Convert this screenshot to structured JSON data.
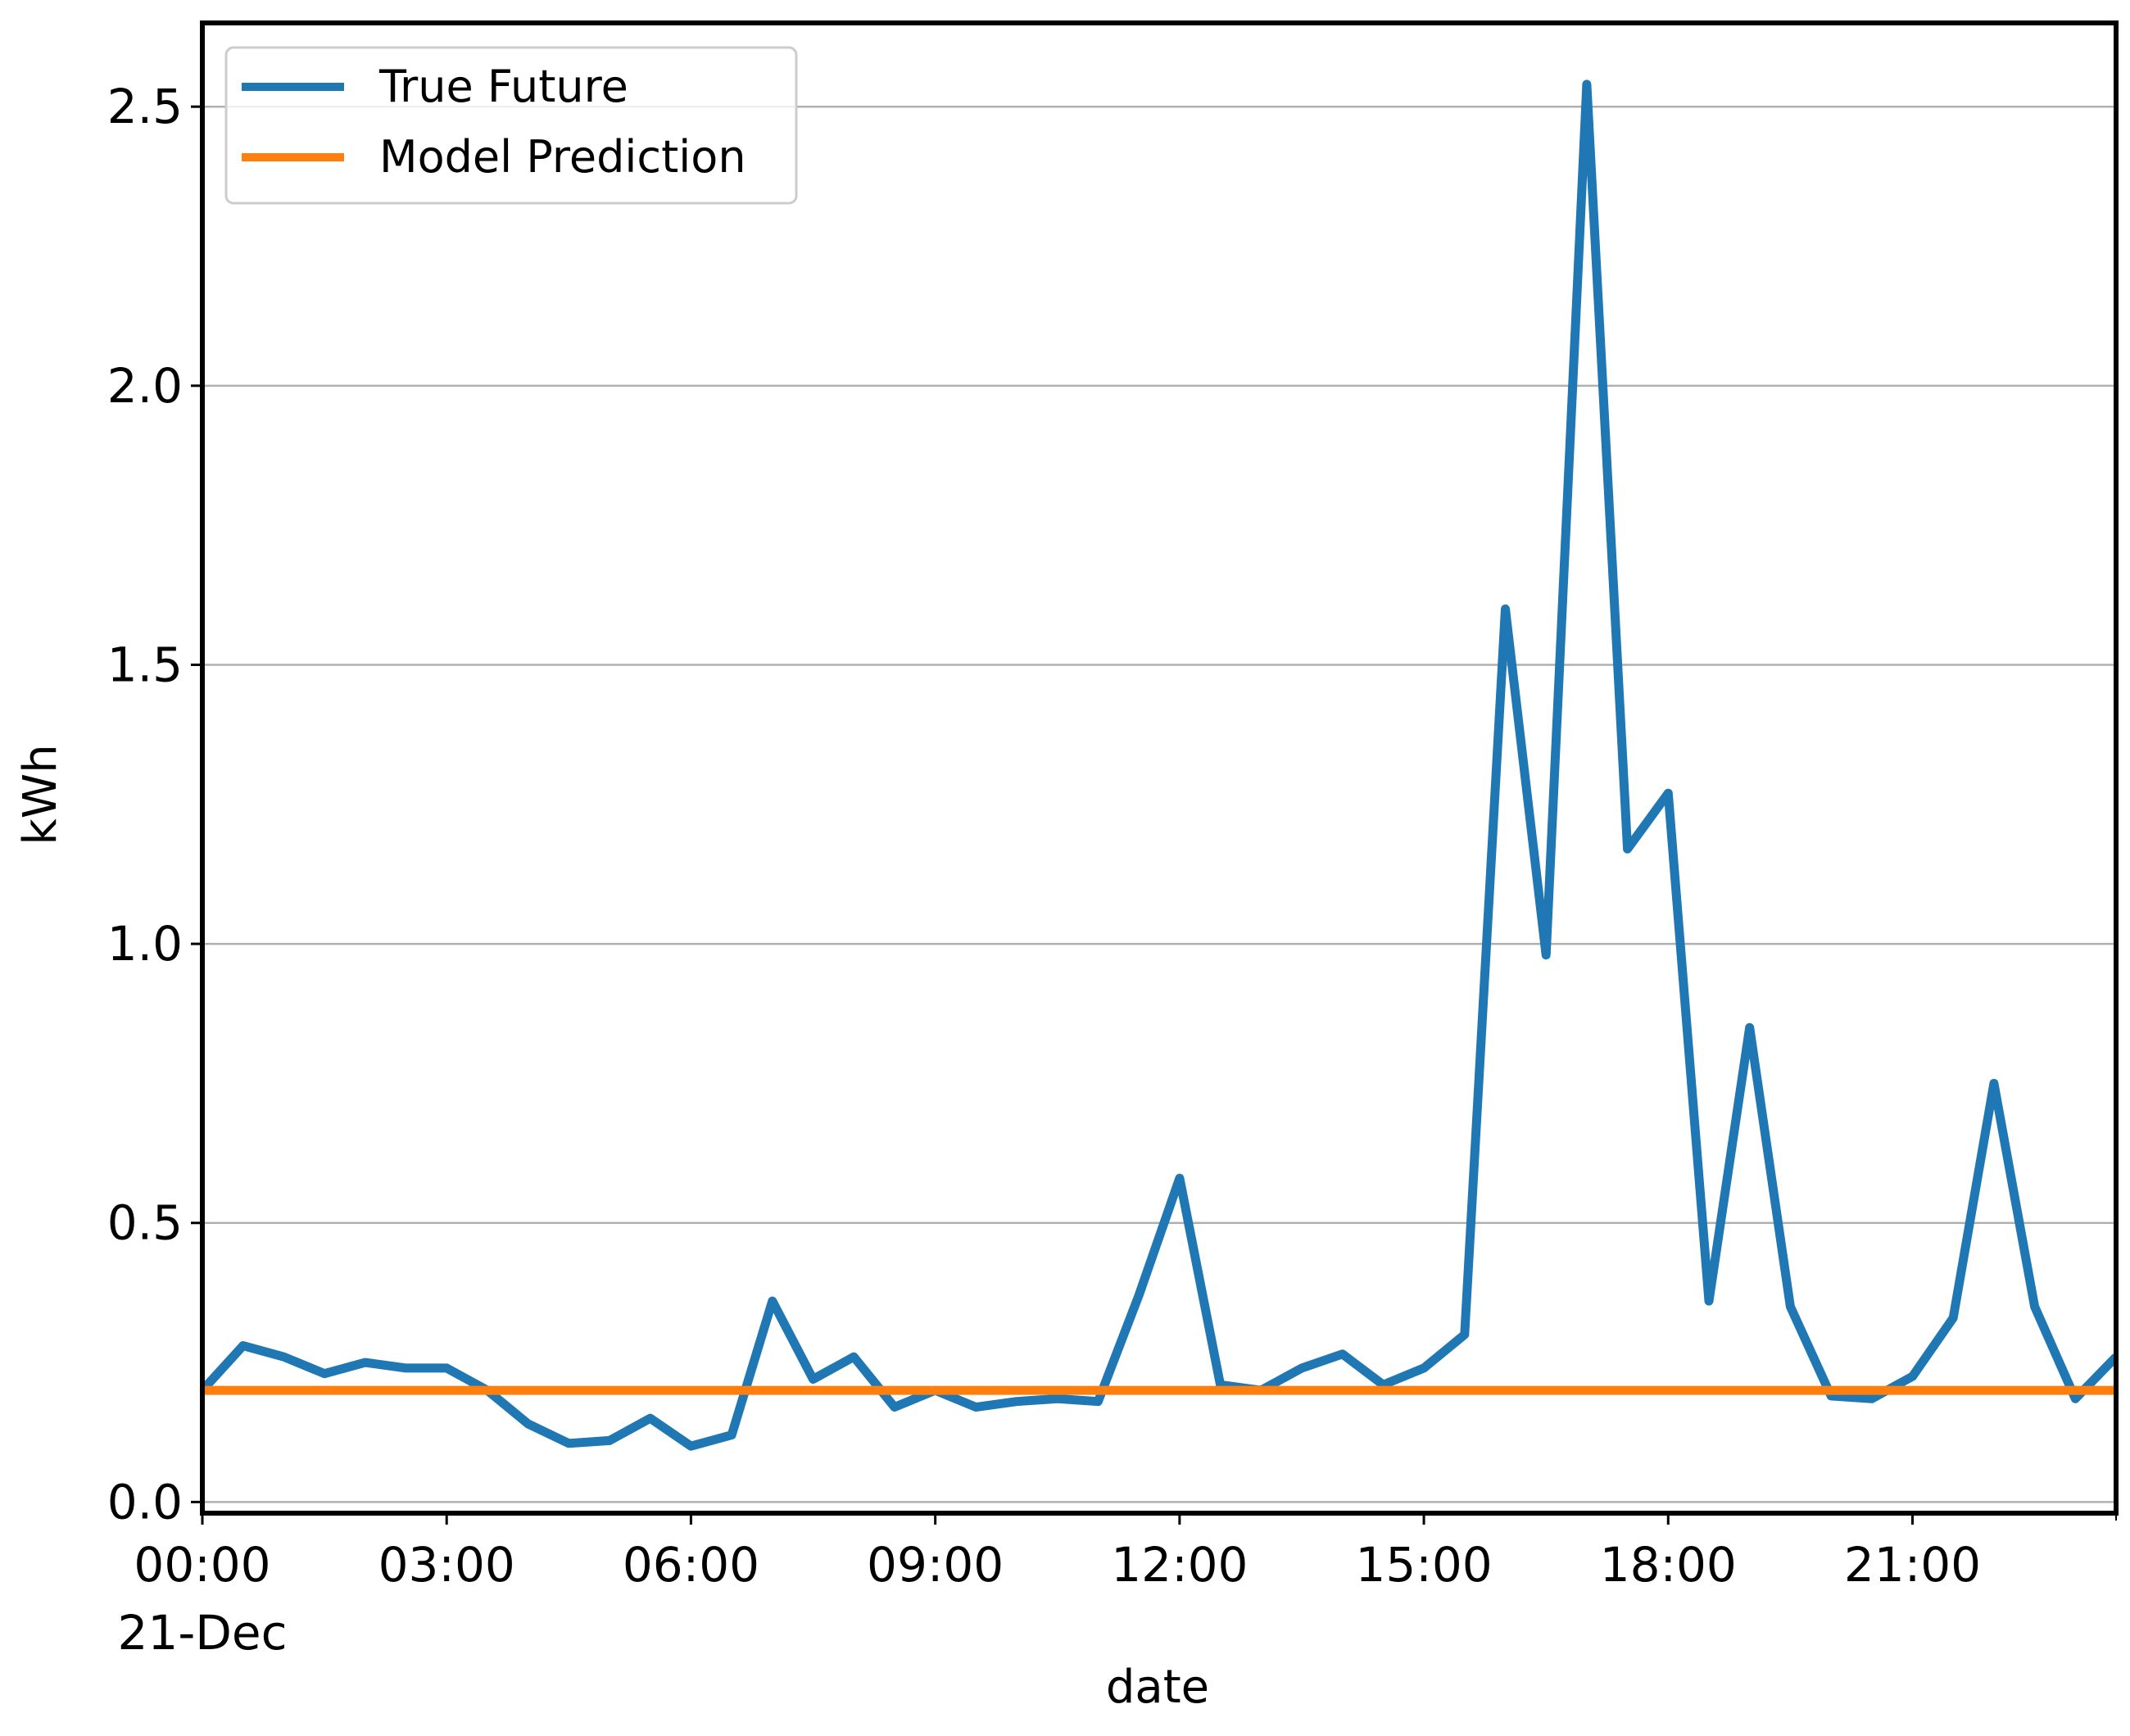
{
  "chart_data": {
    "type": "line",
    "xlabel": "date",
    "ylabel": "kWh",
    "x_date": "21-Dec",
    "x_unit": "hours",
    "xlim": [
      0,
      23.5
    ],
    "ylim": [
      -0.02,
      2.65
    ],
    "grid": "y-axis",
    "legend_position": "top-left",
    "x_ticks": [
      {
        "value": 0,
        "label": "00:00"
      },
      {
        "value": 3,
        "label": "03:00"
      },
      {
        "value": 6,
        "label": "06:00"
      },
      {
        "value": 9,
        "label": "09:00"
      },
      {
        "value": 12,
        "label": "12:00"
      },
      {
        "value": 15,
        "label": "15:00"
      },
      {
        "value": 18,
        "label": "18:00"
      },
      {
        "value": 21,
        "label": "21:00"
      }
    ],
    "x_first_tick_sublabel": "21-Dec",
    "y_ticks": [
      {
        "value": 0.0,
        "label": "0.0"
      },
      {
        "value": 0.5,
        "label": "0.5"
      },
      {
        "value": 1.0,
        "label": "1.0"
      },
      {
        "value": 1.5,
        "label": "1.5"
      },
      {
        "value": 2.0,
        "label": "2.0"
      },
      {
        "value": 2.5,
        "label": "2.5"
      }
    ],
    "series": [
      {
        "name": "True Future",
        "color": "#1f77b4",
        "x": [
          0,
          0.5,
          1,
          1.5,
          2,
          2.5,
          3,
          3.5,
          4,
          4.5,
          5,
          5.5,
          6,
          6.5,
          7,
          7.5,
          8,
          8.5,
          9,
          9.5,
          10,
          10.5,
          11,
          11.5,
          12,
          12.5,
          13,
          13.5,
          14,
          14.5,
          15,
          15.5,
          16,
          16.5,
          17,
          17.5,
          18,
          18.5,
          19,
          19.5,
          20,
          20.5,
          21,
          21.5,
          22,
          22.5,
          23,
          23.5
        ],
        "values": [
          0.2,
          0.28,
          0.26,
          0.23,
          0.25,
          0.24,
          0.24,
          0.2,
          0.14,
          0.105,
          0.11,
          0.15,
          0.1,
          0.12,
          0.36,
          0.22,
          0.26,
          0.17,
          0.2,
          0.17,
          0.18,
          0.185,
          0.18,
          0.37,
          0.58,
          0.21,
          0.2,
          0.24,
          0.265,
          0.21,
          0.24,
          0.3,
          1.6,
          0.98,
          2.54,
          1.17,
          1.27,
          0.36,
          0.85,
          0.35,
          0.19,
          0.185,
          0.225,
          0.33,
          0.75,
          0.35,
          0.185,
          0.26
        ]
      },
      {
        "name": "Model Prediction",
        "color": "#ff7f0e",
        "x": [
          0,
          23.5
        ],
        "values": [
          0.2,
          0.2
        ]
      }
    ]
  }
}
